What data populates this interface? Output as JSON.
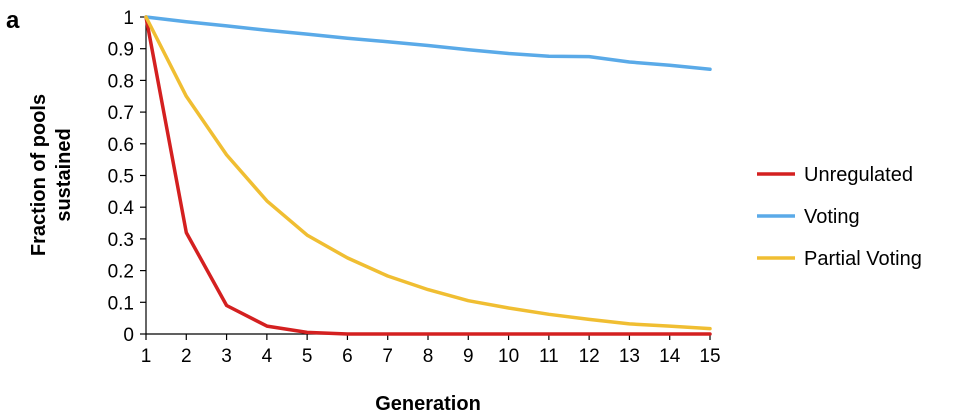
{
  "panel_label": "a",
  "chart_data": {
    "type": "line",
    "title": "",
    "xlabel": "Generation",
    "ylabel": [
      "Fraction of pools",
      "sustained"
    ],
    "x": [
      1,
      2,
      3,
      4,
      5,
      6,
      7,
      8,
      9,
      10,
      11,
      12,
      13,
      14,
      15
    ],
    "xlim": [
      1,
      15
    ],
    "ylim": [
      0,
      1
    ],
    "x_ticks": [
      "1",
      "2",
      "3",
      "4",
      "5",
      "6",
      "7",
      "8",
      "9",
      "10",
      "11",
      "12",
      "13",
      "14",
      "15"
    ],
    "y_ticks": [
      "0",
      "0.1",
      "0.2",
      "0.3",
      "0.4",
      "0.5",
      "0.6",
      "0.7",
      "0.8",
      "0.9",
      "1"
    ],
    "grid": false,
    "legend_position": "right",
    "series": [
      {
        "name": "Unregulated",
        "color": "#d42020",
        "values": [
          1.0,
          0.32,
          0.09,
          0.025,
          0.005,
          0.0,
          0.0,
          0.0,
          0.0,
          0.0,
          0.0,
          0.0,
          0.0,
          0.0,
          0.0
        ]
      },
      {
        "name": "Voting",
        "color": "#5aaae8",
        "values": [
          1.0,
          0.985,
          0.972,
          0.958,
          0.946,
          0.933,
          0.922,
          0.91,
          0.897,
          0.885,
          0.876,
          0.875,
          0.858,
          0.848,
          0.835
        ]
      },
      {
        "name": "Partial Voting",
        "color": "#f0be32",
        "values": [
          1.0,
          0.75,
          0.565,
          0.42,
          0.312,
          0.24,
          0.183,
          0.14,
          0.105,
          0.082,
          0.062,
          0.046,
          0.032,
          0.025,
          0.017
        ]
      }
    ]
  }
}
